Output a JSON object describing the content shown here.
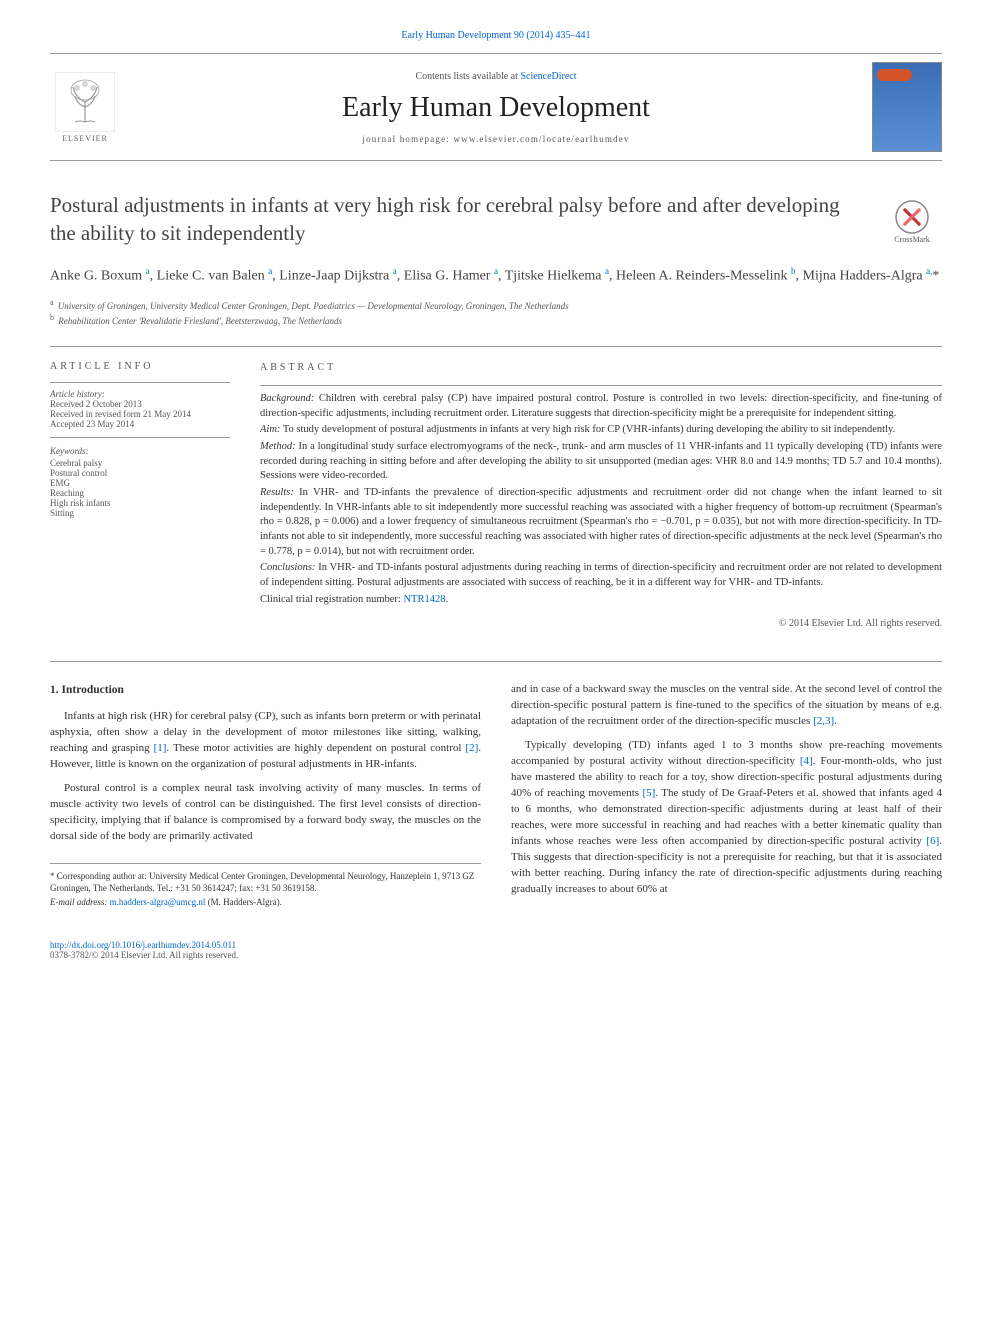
{
  "header": {
    "citation": "Early Human Development 90 (2014) 435–441",
    "contents_prefix": "Contents lists available at ",
    "contents_link": "ScienceDirect",
    "journal_name": "Early Human Development",
    "homepage_prefix": "journal homepage: ",
    "homepage_url": "www.elsevier.com/locate/earlhumdev",
    "publisher_name": "ELSEVIER",
    "crossmark_label": "CrossMark"
  },
  "article": {
    "title": "Postural adjustments in infants at very high risk for cerebral palsy before and after developing the ability to sit independently",
    "authors_html": "Anke G. Boxum <sup>a</sup>, Lieke C. van Balen <sup>a</sup>, Linze-Jaap Dijkstra <sup>a</sup>, Elisa G. Hamer <sup>a</sup>, Tjitske Hielkema <sup>a</sup>, Heleen A. Reinders-Messelink <sup>b</sup>, Mijna Hadders-Algra <sup>a,</sup>*",
    "affiliations": [
      {
        "sup": "a",
        "text": "University of Groningen, University Medical Center Groningen, Dept. Paediatrics — Developmental Neurology, Groningen, The Netherlands"
      },
      {
        "sup": "b",
        "text": "Rehabilitation Center 'Revalidatie Friesland', Beetsterzwaag, The Netherlands"
      }
    ]
  },
  "info": {
    "heading": "article info",
    "history_label": "Article history:",
    "received": "Received 2 October 2013",
    "revised": "Received in revised form 21 May 2014",
    "accepted": "Accepted 23 May 2014",
    "keywords_label": "Keywords:",
    "keywords": [
      "Cerebral palsy",
      "Postural control",
      "EMG",
      "Reaching",
      "High risk infants",
      "Sitting"
    ]
  },
  "abstract": {
    "heading": "abstract",
    "background_label": "Background:",
    "background": " Children with cerebral palsy (CP) have impaired postural control. Posture is controlled in two levels: direction-specificity, and fine-tuning of direction-specific adjustments, including recruitment order. Literature suggests that direction-specificity might be a prerequisite for independent sitting.",
    "aim_label": "Aim:",
    "aim": " To study development of postural adjustments in infants at very high risk for CP (VHR-infants) during developing the ability to sit independently.",
    "method_label": "Method:",
    "method": " In a longitudinal study surface electromyograms of the neck-, trunk- and arm muscles of 11 VHR-infants and 11 typically developing (TD) infants were recorded during reaching in sitting before and after developing the ability to sit unsupported (median ages: VHR 8.0 and 14.9 months; TD 5.7 and 10.4 months). Sessions were video-recorded.",
    "results_label": "Results:",
    "results": " In VHR- and TD-infants the prevalence of direction-specific adjustments and recruitment order did not change when the infant learned to sit independently. In VHR-infants able to sit independently more successful reaching was associated with a higher frequency of bottom-up recruitment (Spearman's rho = 0.828, p = 0.006) and a lower frequency of simultaneous recruitment (Spearman's rho = −0.701, p = 0.035), but not with more direction-specificity. In TD-infants not able to sit independently, more successful reaching was associated with higher rates of direction-specific adjustments at the neck level (Spearman's rho = 0.778, p = 0.014), but not with recruitment order.",
    "conclusions_label": "Conclusions:",
    "conclusions": " In VHR- and TD-infants postural adjustments during reaching in terms of direction-specificity and recruitment order are not related to development of independent sitting. Postural adjustments are associated with success of reaching, be it in a different way for VHR- and TD-infants.",
    "trial_prefix": "Clinical trial registration number: ",
    "trial_link": "NTR1428",
    "copyright": "© 2014 Elsevier Ltd. All rights reserved."
  },
  "body": {
    "intro_heading": "1. Introduction",
    "col1_p1": "Infants at high risk (HR) for cerebral palsy (CP), such as infants born preterm or with perinatal asphyxia, often show a delay in the development of motor milestones like sitting, walking, reaching and grasping [1]. These motor activities are highly dependent on postural control [2]. However, little is known on the organization of postural adjustments in HR-infants.",
    "col1_p2": "Postural control is a complex neural task involving activity of many muscles. In terms of muscle activity two levels of control can be distinguished. The first level consists of direction-specificity, implying that if balance is compromised by a forward body sway, the muscles on the dorsal side of the body are primarily activated",
    "col2_p1": "and in case of a backward sway the muscles on the ventral side. At the second level of control the direction-specific postural pattern is fine-tuned to the specifics of the situation by means of e.g. adaptation of the recruitment order of the direction-specific muscles [2,3].",
    "col2_p2": "Typically developing (TD) infants aged 1 to 3 months show pre-reaching movements accompanied by postural activity without direction-specificity [4]. Four-month-olds, who just have mastered the ability to reach for a toy, show direction-specific postural adjustments during 40% of reaching movements [5]. The study of De Graaf-Peters et al. showed that infants aged 4 to 6 months, who demonstrated direction-specific adjustments during at least half of their reaches, were more successful in reaching and had reaches with a better kinematic quality than infants whose reaches were less often accompanied by direction-specific postural activity [6]. This suggests that direction-specificity is not a prerequisite for reaching, but that it is associated with better reaching. During infancy the rate of direction-specific adjustments during reaching gradually increases to about 60% at"
  },
  "footnote": {
    "corresponding": "* Corresponding author at: University Medical Center Groningen, Developmental Neurology, Hanzeplein 1, 9713 GZ Groningen, The Netherlands. Tel.: +31 50 3614247; fax: +31 50 3619158.",
    "email_label": "E-mail address: ",
    "email": "m.hadders-algra@umcg.nl",
    "email_suffix": " (M. Hadders-Algra)."
  },
  "footer": {
    "doi": "http://dx.doi.org/10.1016/j.earlhumdev.2014.05.011",
    "issn_line": "0378-3782/© 2014 Elsevier Ltd. All rights reserved."
  },
  "colors": {
    "link": "#0066cc",
    "text": "#333333",
    "muted": "#555555",
    "rule": "#999999",
    "cover_gradient_top": "#3a6db5",
    "cover_badge": "#d4542a"
  }
}
